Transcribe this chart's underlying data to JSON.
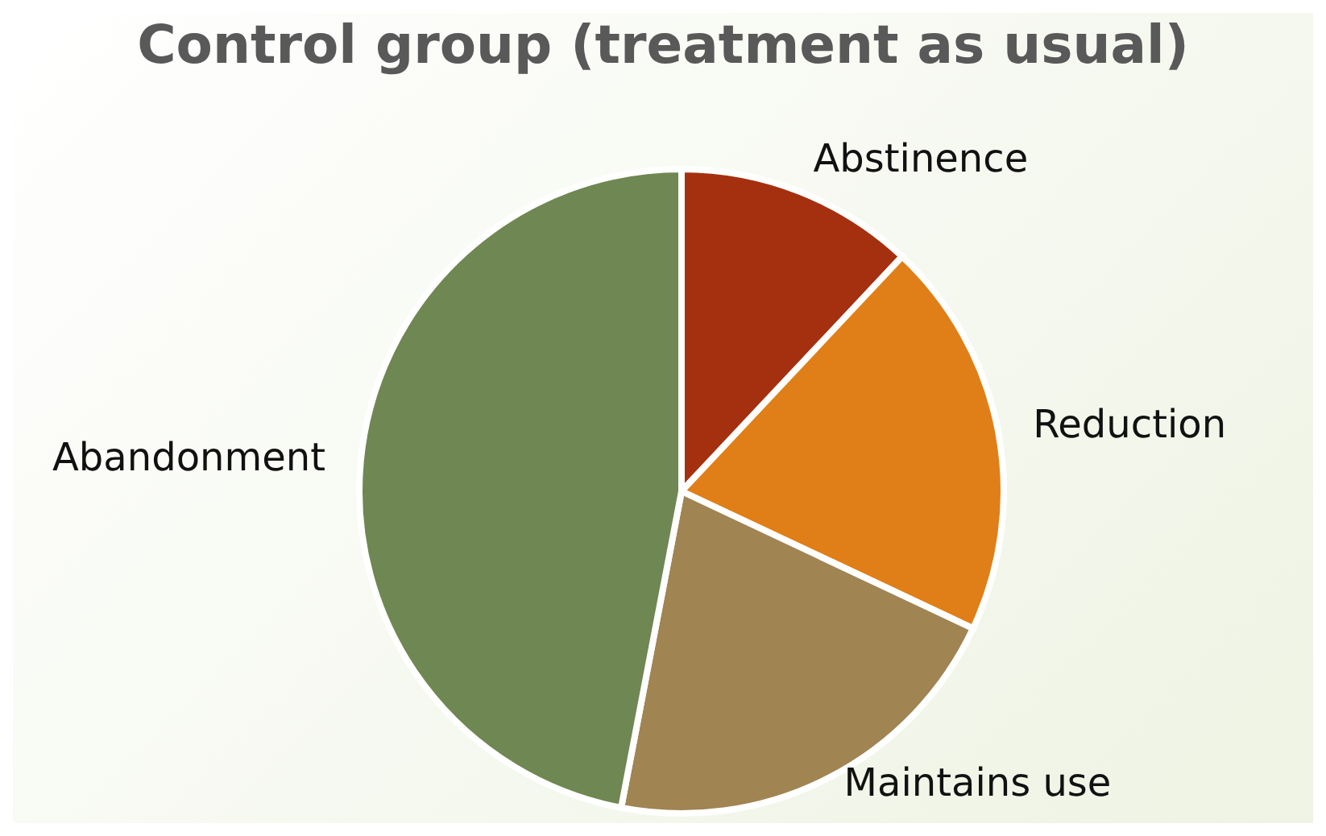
{
  "chart_data": {
    "type": "pie",
    "title": "Control group (treatment as usual)",
    "categories": [
      "Abstinence",
      "Reduction",
      "Maintains use",
      "Abandonment"
    ],
    "values": [
      12,
      20,
      21,
      47
    ],
    "colors": [
      "#a5300f",
      "#e07f17",
      "#a08452",
      "#6f8752"
    ],
    "legend": false
  }
}
